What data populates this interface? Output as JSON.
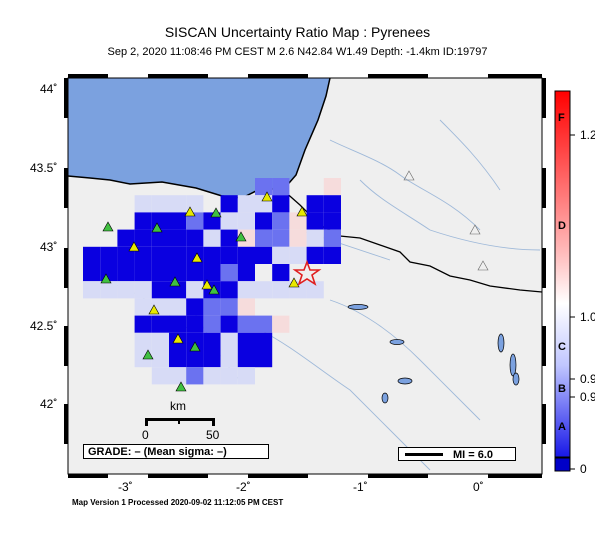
{
  "header": {
    "title": "SISCAN Uncertainty Ratio Map : Pyrenees",
    "subtitle": "Sep  2, 2020 11:08:46 PM CEST    M 2.6    N42.84 W1.49    Depth: -1.4km    ID:19797"
  },
  "axes": {
    "y_ticks": [
      "44˚",
      "43.5˚",
      "43˚",
      "42.5˚",
      "42˚"
    ],
    "x_ticks": [
      "-3˚",
      "-2˚",
      "-1˚",
      "0˚"
    ]
  },
  "scale_bar": {
    "unit": "km",
    "start": "0",
    "end": "50"
  },
  "grade_box": {
    "text": "GRADE: – (Mean sigma: –)"
  },
  "legend": {
    "mi_label": "MI = 6.0"
  },
  "colorbar": {
    "values": [
      "1.2",
      "1.0",
      "0.9",
      "0.9",
      "0"
    ],
    "letters": [
      "F",
      "D",
      "C",
      "B",
      "A"
    ]
  },
  "footer": {
    "text": "Map Version 1 Processed 2020-09-02 11:12:05 PM CEST"
  },
  "colors": {
    "ocean": "#7ba1df",
    "land": "#efefef",
    "ratio_low": "#0a00e0",
    "ratio_high": "#f20000",
    "station": "#e8e800",
    "station_alt": "#40c040",
    "epicenter": "#e02020"
  }
}
